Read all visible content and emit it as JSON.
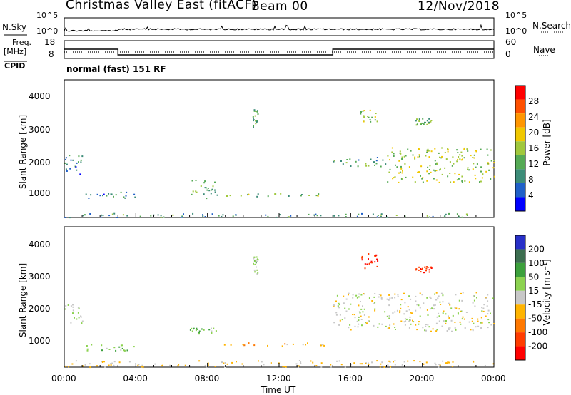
{
  "header": {
    "title": "Christmas Valley East (fitACF)",
    "beam": "Beam 00",
    "date": "12/Nov/2018"
  },
  "top_panels": {
    "nsky_label": "N.Sky",
    "nsearch_label": "N.Search",
    "nsky_ticks": [
      "10^5",
      "10^0"
    ],
    "nsearch_ticks": [
      "10^5",
      "10^0"
    ],
    "freq_label_1": "Freq.",
    "freq_label_2": "[MHz]",
    "freq_ticks": [
      "18",
      "8"
    ],
    "nave_label": "Nave",
    "nave_ticks": [
      "60",
      "0"
    ],
    "cpid_label": "CPID",
    "cpid_text": "normal (fast) 151 RF"
  },
  "power_panel": {
    "ylabel": "Slant Range [km]",
    "yticks": [
      "4000",
      "3000",
      "2000",
      "1000"
    ],
    "colorbar_label": "Power [dB]",
    "colorbar_ticks": [
      "28",
      "24",
      "20",
      "16",
      "12",
      "8",
      "4"
    ],
    "colors": [
      "#0000ff",
      "#2060c8",
      "#3c8c78",
      "#55aa55",
      "#a0c83c",
      "#f0c800",
      "#ff9600",
      "#ff5000",
      "#ff0000"
    ]
  },
  "velocity_panel": {
    "ylabel": "Slant Range [km]",
    "yticks": [
      "4000",
      "3000",
      "2000",
      "1000"
    ],
    "colorbar_label": "Velocity [m s⁻¹]",
    "colorbar_ticks": [
      "200",
      "100",
      "50",
      "15",
      "-15",
      "-50",
      "-100",
      "-200"
    ],
    "colors": [
      "#2830c8",
      "#3c6e50",
      "#3ca03c",
      "#8cd250",
      "#c8c8c8",
      "#ffb400",
      "#ff7800",
      "#ff3c00",
      "#ff0000"
    ]
  },
  "xaxis": {
    "ticks": [
      "00:00",
      "04:00",
      "08:00",
      "12:00",
      "16:00",
      "20:00",
      "00:00"
    ],
    "label": "Time UT"
  },
  "chart_data": [
    {
      "type": "line",
      "panel": "N.Sky / N.Search",
      "x": [
        0,
        3,
        4,
        8,
        10.5,
        12,
        16,
        20,
        24
      ],
      "series": [
        {
          "name": "N.Sky",
          "values": [
            10,
            10,
            100,
            100,
            300,
            100,
            100,
            100,
            100
          ]
        }
      ]
    },
    {
      "type": "line",
      "panel": "Freq / Nave",
      "x": [
        0,
        3.0,
        3.0,
        15.0,
        15.0,
        24
      ],
      "series": [
        {
          "name": "Freq.",
          "values": [
            12,
            12,
            8,
            8,
            12,
            12
          ]
        },
        {
          "name": "Nave",
          "values": [
            12,
            12,
            12,
            12,
            12,
            12
          ]
        }
      ]
    },
    {
      "type": "heatmap",
      "quantity": "Power",
      "xlim": [
        0,
        24
      ],
      "ylim": [
        180,
        4500
      ],
      "zlim": [
        0,
        30
      ],
      "regions": [
        {
          "t0": 0,
          "t1": 24,
          "r0": 200,
          "r1": 330,
          "z": 10
        },
        {
          "t0": 0,
          "t1": 1,
          "r0": 1550,
          "r1": 2150,
          "z": 8
        },
        {
          "t0": 1,
          "t1": 4,
          "r0": 800,
          "r1": 1000,
          "z": 8
        },
        {
          "t0": 7,
          "t1": 8.5,
          "r0": 800,
          "r1": 1400,
          "z": 12
        },
        {
          "t0": 8.5,
          "t1": 14.5,
          "r0": 850,
          "r1": 950,
          "z": 14
        },
        {
          "t0": 10.5,
          "t1": 10.8,
          "r0": 3000,
          "r1": 3600,
          "z": 12
        },
        {
          "t0": 15,
          "t1": 18,
          "r0": 1800,
          "r1": 2100,
          "z": 10
        },
        {
          "t0": 16.5,
          "t1": 17.5,
          "r0": 3200,
          "r1": 3600,
          "z": 16
        },
        {
          "t0": 19.5,
          "t1": 20.5,
          "r0": 3100,
          "r1": 3300,
          "z": 12
        },
        {
          "t0": 18,
          "t1": 24,
          "r0": 1300,
          "r1": 2400,
          "z": 16
        }
      ]
    },
    {
      "type": "heatmap",
      "quantity": "Velocity",
      "xlim": [
        0,
        24
      ],
      "ylim": [
        180,
        4500
      ],
      "zlim": [
        -200,
        200
      ],
      "regions": [
        {
          "t0": 0,
          "t1": 24,
          "r0": 200,
          "r1": 400,
          "z": -20
        },
        {
          "t0": 0,
          "t1": 1,
          "r0": 1550,
          "r1": 2150,
          "z": 20
        },
        {
          "t0": 1,
          "t1": 4,
          "r0": 700,
          "r1": 900,
          "z": 30
        },
        {
          "t0": 7,
          "t1": 8.5,
          "r0": 1200,
          "r1": 1400,
          "z": 40
        },
        {
          "t0": 8.5,
          "t1": 14.5,
          "r0": 850,
          "r1": 950,
          "z": -40
        },
        {
          "t0": 10.5,
          "t1": 10.8,
          "r0": 3000,
          "r1": 3600,
          "z": 30
        },
        {
          "t0": 16.5,
          "t1": 17.5,
          "r0": 3200,
          "r1": 3700,
          "z": -200
        },
        {
          "t0": 19.5,
          "t1": 20.5,
          "r0": 3100,
          "r1": 3300,
          "z": -180
        },
        {
          "t0": 15,
          "t1": 24,
          "r0": 1300,
          "r1": 2500,
          "z": 0
        }
      ]
    }
  ]
}
